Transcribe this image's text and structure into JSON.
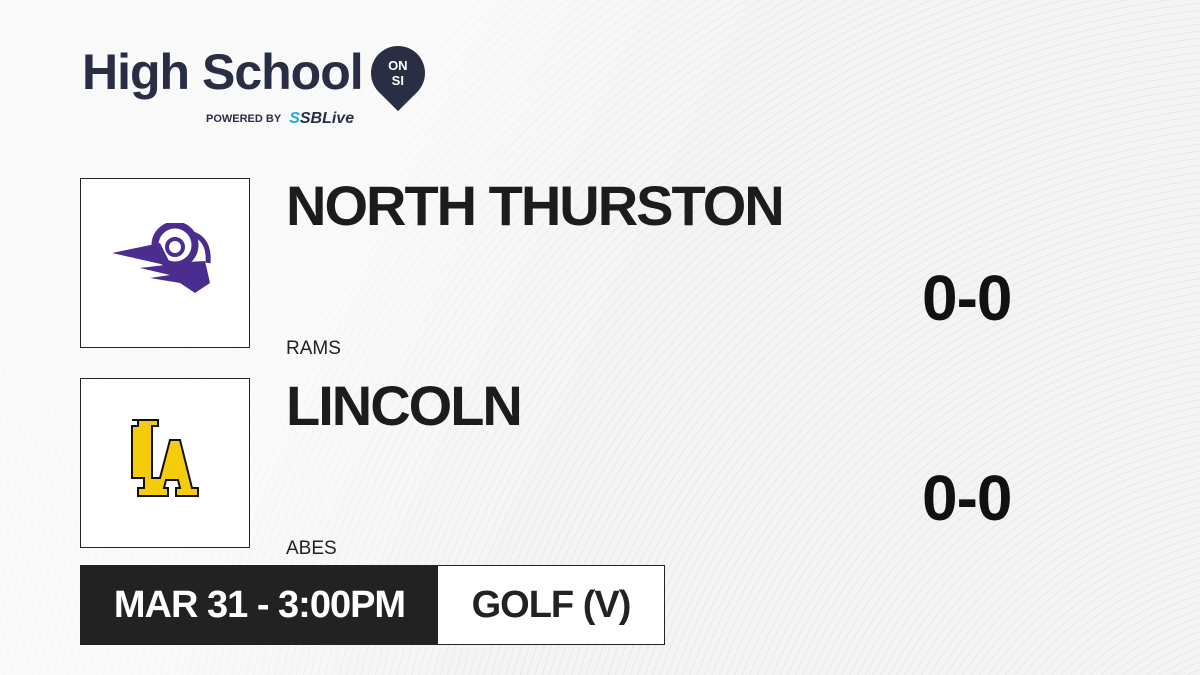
{
  "brand": {
    "title": "High School",
    "badge_top": "ON",
    "badge_bottom": "SI",
    "powered_by": "POWERED BY",
    "partner_prefix": "S",
    "partner": "SBLive"
  },
  "teams": [
    {
      "name": "NORTH THURSTON",
      "mascot": "RAMS",
      "score": "0-0",
      "logo_icon": "ram-head-icon",
      "color": "#4b2d8f"
    },
    {
      "name": "LINCOLN",
      "mascot": "ABES",
      "score": "0-0",
      "logo_icon": "la-monogram-icon",
      "color": "#f5cc0a"
    }
  ],
  "game": {
    "datetime": "MAR 31 - 3:00PM",
    "sport": "GOLF (V)"
  }
}
